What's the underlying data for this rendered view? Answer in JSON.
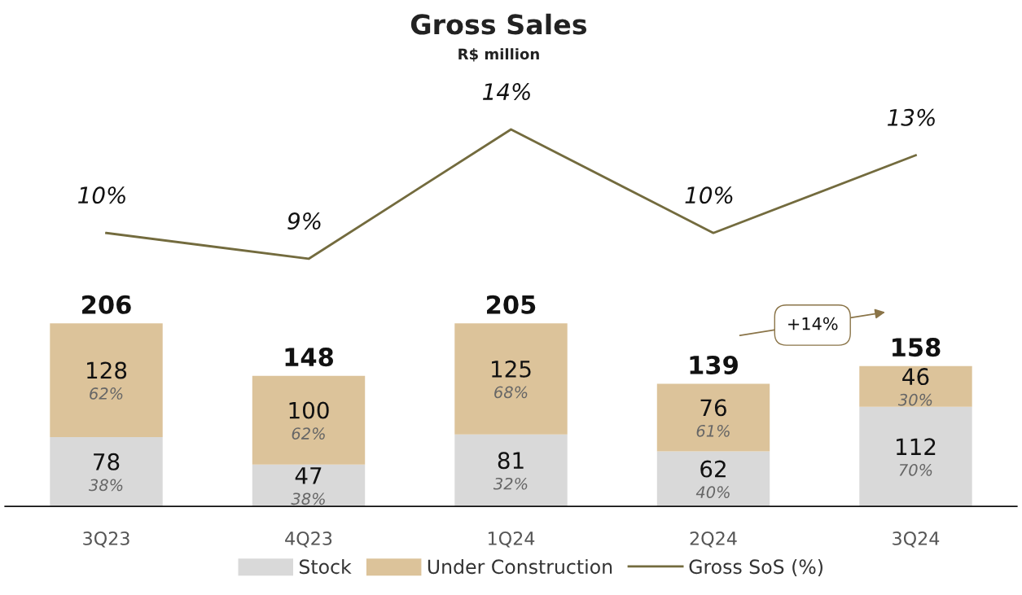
{
  "chart_data": [
    {
      "type": "line",
      "title": "Gross Sales",
      "subtitle": "R$ million",
      "categories": [
        null,
        null,
        null,
        null,
        null
      ],
      "series": [
        {
          "name": "Gross SoS (%)",
          "color": "#736b3e",
          "values": [
            10,
            9,
            14,
            10,
            13
          ],
          "value_labels": [
            "10%",
            "9%",
            "14%",
            "10%",
            "13%"
          ]
        }
      ],
      "tick_labels": false,
      "legend": "bottom"
    },
    {
      "type": "bar",
      "stacked": true,
      "categories": [
        "3Q23",
        "4Q23",
        "1Q24",
        "2Q24",
        "3Q24"
      ],
      "series": [
        {
          "name": "Stock",
          "color": "#d9d9d9",
          "values": [
            78,
            47,
            81,
            62,
            112
          ],
          "value_labels": [
            "78",
            "47",
            "81",
            "62",
            "112"
          ]
        },
        {
          "name": "Under Construction",
          "color": "#dcc39a",
          "values": [
            128,
            100,
            125,
            76,
            46
          ],
          "value_labels": [
            "128",
            "100",
            "125",
            "76",
            "46"
          ]
        }
      ],
      "totals": [
        "206",
        "148",
        "205",
        "139",
        "158"
      ],
      "annotations": [
        "38%",
        "62%",
        "38%",
        "62%",
        "32%",
        "68%",
        "40%",
        "61%",
        "70%",
        "30%",
        "+14%"
      ],
      "tick_labels": "x",
      "grid": false,
      "legend": "bottom"
    }
  ]
}
